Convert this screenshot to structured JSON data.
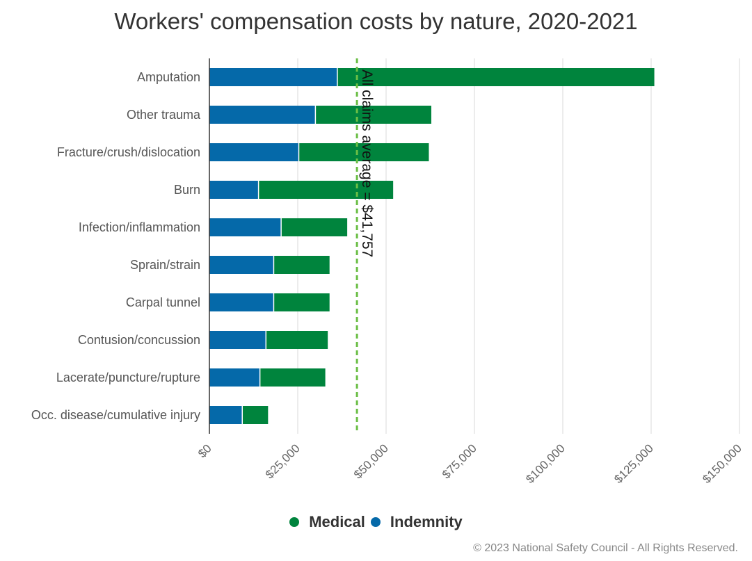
{
  "chart_data": {
    "type": "bar",
    "orientation": "horizontal",
    "stacked": true,
    "title": "Workers' compensation costs by nature, 2020-2021",
    "categories": [
      "Amputation",
      "Other trauma",
      "Fracture/crush/dislocation",
      "Burn",
      "Infection/inflammation",
      "Sprain/strain",
      "Carpal tunnel",
      "Contusion/concussion",
      "Lacerate/puncture/rupture",
      "Occ. disease/cumulative injury"
    ],
    "series": [
      {
        "name": "Indemnity",
        "color": "#0569A9",
        "values": [
          36200,
          30000,
          25300,
          13900,
          20300,
          18200,
          18200,
          16000,
          14300,
          9300
        ]
      },
      {
        "name": "Medical",
        "color": "#00843D",
        "values": [
          89700,
          32800,
          36800,
          38100,
          18700,
          15800,
          15800,
          17500,
          18500,
          7300
        ]
      }
    ],
    "xlim": [
      0,
      150000
    ],
    "xticks": [
      0,
      25000,
      50000,
      75000,
      100000,
      125000,
      150000
    ],
    "xtick_labels": [
      "$0",
      "$25,000",
      "$50,000",
      "$75,000",
      "$100,000",
      "$125,000",
      "$150,000"
    ],
    "reference_line": {
      "value": 41757,
      "label": "All claims average = $41,757",
      "color": "#6BBE45"
    },
    "grid": true,
    "legend": {
      "position": "bottom-center",
      "order": [
        "Medical",
        "Indemnity"
      ]
    },
    "xlabel": "",
    "ylabel": ""
  },
  "copyright": "© 2023 National Safety Council - All Rights Reserved."
}
